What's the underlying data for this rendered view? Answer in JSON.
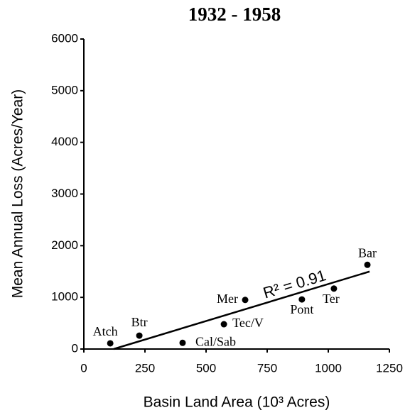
{
  "chart_data": {
    "type": "scatter",
    "title": "1932 - 1958",
    "x_label": "Basin Land Area (10³ Acres)",
    "y_label": "Mean Annual Loss (Acres/Year)",
    "x": [
      108,
      227,
      404,
      573,
      660,
      892,
      1023,
      1160
    ],
    "y": [
      110,
      260,
      120,
      480,
      950,
      960,
      1170,
      1630
    ],
    "labels": [
      "Atch",
      "Btr",
      "Cal/Sab",
      "Tec/V",
      "Mer",
      "Pont",
      "Ter",
      "Bar"
    ],
    "color": "#000000",
    "trendline": {
      "x": [
        122,
        1169
      ],
      "y": [
        0,
        1500
      ]
    },
    "annotation": "R² = 0.91",
    "xlim": [
      0,
      1250
    ],
    "ylim": [
      0,
      6000
    ],
    "xticks": [
      0,
      250,
      500,
      750,
      1000,
      1250
    ],
    "yticks": [
      0,
      1000,
      2000,
      3000,
      4000,
      5000,
      6000
    ],
    "grid": false
  }
}
